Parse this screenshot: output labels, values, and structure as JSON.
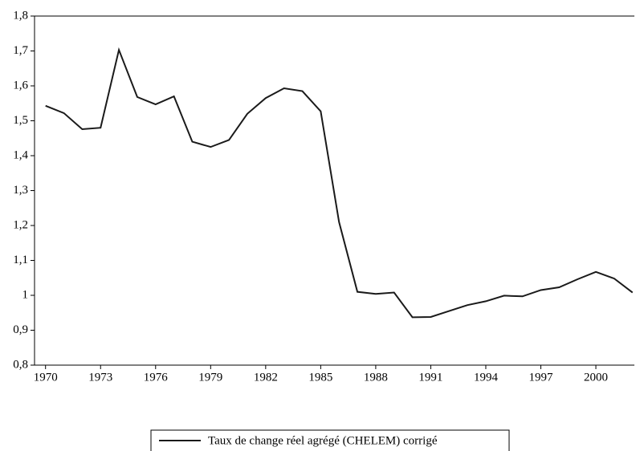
{
  "chart_data": {
    "type": "line",
    "x": [
      1970,
      1971,
      1972,
      1973,
      1974,
      1975,
      1976,
      1977,
      1978,
      1979,
      1980,
      1981,
      1982,
      1983,
      1984,
      1985,
      1986,
      1987,
      1988,
      1989,
      1990,
      1991,
      1992,
      1993,
      1994,
      1995,
      1996,
      1997,
      1998,
      1999,
      2000,
      2001,
      2002
    ],
    "series": [
      {
        "name": "Taux de change réel agrégé (CHELEM) corrigé",
        "color": "#1a1a1a",
        "values": [
          1.543,
          1.522,
          1.476,
          1.48,
          1.703,
          1.568,
          1.547,
          1.57,
          1.44,
          1.425,
          1.445,
          1.52,
          1.565,
          1.593,
          1.585,
          1.527,
          1.21,
          1.01,
          1.004,
          1.008,
          0.937,
          0.938,
          0.955,
          0.972,
          0.983,
          0.999,
          0.997,
          1.015,
          1.023,
          1.046,
          1.067,
          1.048,
          1.008
        ]
      }
    ],
    "xlim": [
      1969.4,
      2002.1
    ],
    "xticks": [
      1970,
      1973,
      1976,
      1979,
      1982,
      1985,
      1988,
      1991,
      1994,
      1997,
      2000
    ],
    "ylim": [
      0.8,
      1.8
    ],
    "yticks": [
      {
        "value": 0.8,
        "label": "0,8"
      },
      {
        "value": 0.9,
        "label": "0,9"
      },
      1,
      {
        "value": 1.1,
        "label": "1,1"
      },
      {
        "value": 1.2,
        "label": "1,2"
      },
      {
        "value": 1.3,
        "label": "1,3"
      },
      {
        "value": 1.4,
        "label": "1,4"
      },
      {
        "value": 1.5,
        "label": "1,5"
      },
      {
        "value": 1.6,
        "label": "1,6"
      },
      {
        "value": 1.7,
        "label": "1,7"
      },
      {
        "value": 1.8,
        "label": "1,8"
      }
    ],
    "grid": false
  }
}
